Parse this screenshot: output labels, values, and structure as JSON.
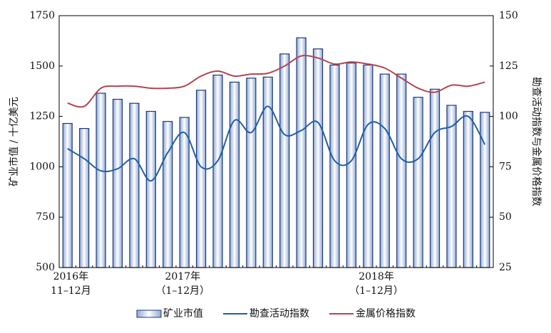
{
  "chart_data": {
    "type": "bar_line",
    "y_label": "矿业市值 / 十亿美元",
    "y2_label": "勘查活动指数与金属价格指数",
    "x_group_labels": [
      {
        "year": "2016年",
        "range": "11–12月"
      },
      {
        "year": "2017年",
        "range": "（1–12月）"
      },
      {
        "year": "2018年",
        "range": "（1–12月）"
      }
    ],
    "ylim": [
      500,
      1750
    ],
    "yticks": [
      500,
      750,
      1000,
      1250,
      1500,
      1750
    ],
    "y2lim": [
      25,
      150
    ],
    "y2ticks": [
      25,
      50,
      75,
      100,
      125,
      150
    ],
    "series": [
      {
        "name": "矿业市值",
        "type": "bar",
        "color": "#1f3a7a",
        "values": [
          1215,
          1190,
          1365,
          1335,
          1315,
          1275,
          1225,
          1245,
          1380,
          1455,
          1420,
          1440,
          1445,
          1560,
          1640,
          1585,
          1505,
          1515,
          1505,
          1460,
          1460,
          1345,
          1385,
          1305,
          1275,
          1270
        ]
      },
      {
        "name": "勘查活动指数",
        "type": "line",
        "axis": "y2",
        "color": "#1f5fa8",
        "values": [
          84,
          79,
          73,
          74,
          79,
          68,
          82,
          92,
          75,
          78,
          98,
          92,
          105,
          91,
          93,
          97,
          78,
          78,
          96,
          94,
          79,
          79,
          92,
          95,
          100,
          86
        ]
      },
      {
        "name": "金属价格指数",
        "type": "line",
        "axis": "y2",
        "color": "#b5454f",
        "values": [
          106.6,
          105,
          114,
          115,
          115,
          114,
          114,
          115,
          120,
          122.5,
          120,
          121,
          121.4,
          125,
          130,
          129,
          126,
          127,
          126,
          124,
          119,
          114,
          112,
          115.5,
          115,
          117
        ]
      }
    ]
  }
}
